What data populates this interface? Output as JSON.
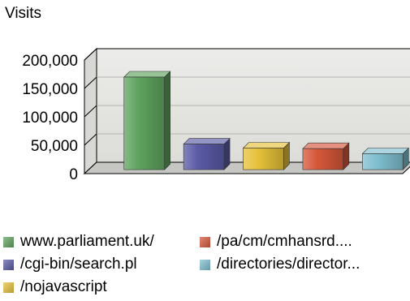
{
  "chart_data": {
    "type": "bar",
    "ylabel": "Visits",
    "ylim": [
      0,
      200000
    ],
    "yticks": [
      "200,000",
      "150,000",
      "100,000",
      "50,000",
      "0"
    ],
    "grid": true,
    "legend_position": "bottom",
    "series": [
      {
        "name": "www.parliament.uk/",
        "value": 163000,
        "color": "#5fa35f"
      },
      {
        "name": "/cgi-bin/search.pl",
        "value": 45000,
        "color": "#5a5aa6"
      },
      {
        "name": "/nojavascript",
        "value": 38000,
        "color": "#e6c23a"
      },
      {
        "name": "/pa/cm/cmhansrd....",
        "value": 37000,
        "color": "#d6573a"
      },
      {
        "name": "/directories/director...",
        "value": 28000,
        "color": "#7fbfcf"
      }
    ]
  }
}
